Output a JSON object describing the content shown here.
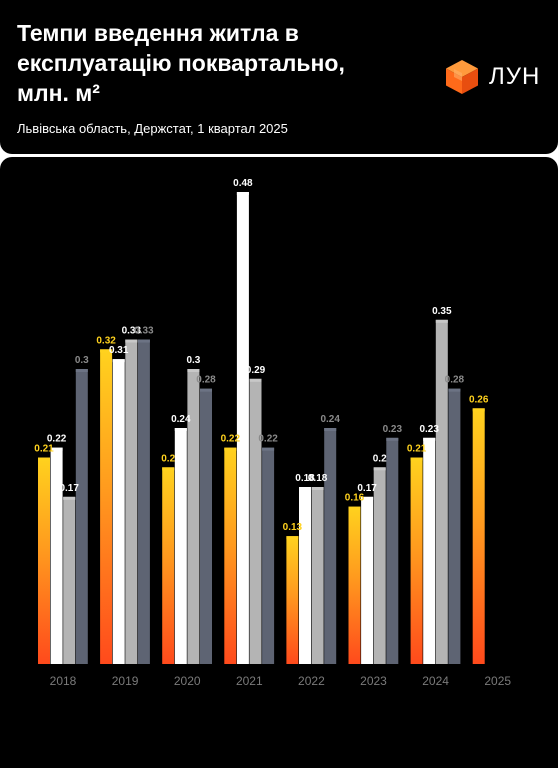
{
  "header": {
    "title": "Темпи введення житла в експлуатацію поквартально, млн. м²",
    "subtitle": "Львівська область, Держстат, 1 квартал 2025",
    "logo_text": "ЛУН"
  },
  "colors": {
    "background": "#000000",
    "q1": "#ffd21e",
    "q1_bottom": "#ff4a1c",
    "q2": "#ffffff",
    "q3": "#b4b4b4",
    "q4": "#5e6473",
    "logo": "#ff6a1a",
    "axis_text": "#7a7a7a"
  },
  "chart_data": {
    "type": "bar",
    "title": "Темпи введення житла в експлуатацію поквартально, млн. м²",
    "xlabel": "",
    "ylabel": "",
    "ylim": [
      0,
      0.48
    ],
    "grid": false,
    "legend": "none",
    "categories": [
      "2018",
      "2019",
      "2020",
      "2021",
      "2022",
      "2023",
      "2024",
      "2025"
    ],
    "series": [
      {
        "values": [
          0.21,
          0.32,
          0.2,
          0.22,
          0.13,
          0.16,
          0.21,
          0.26
        ],
        "labels": [
          "0.21",
          "0.32",
          "0.2",
          "0.22",
          "0.13",
          "0.16",
          "0.21",
          "0.26"
        ]
      },
      {
        "values": [
          0.22,
          0.31,
          0.24,
          0.48,
          0.18,
          0.17,
          0.23,
          null
        ],
        "labels": [
          "0.22",
          "0.31",
          "0.24",
          "0.48",
          "0.18",
          "0.17",
          "0.23",
          ""
        ]
      },
      {
        "values": [
          0.17,
          0.33,
          0.3,
          0.29,
          0.18,
          0.2,
          0.35,
          null
        ],
        "labels": [
          "0.17",
          "0.33",
          "0.3",
          "0.29",
          "0.18",
          "0.2",
          "0.35",
          ""
        ]
      },
      {
        "values": [
          0.3,
          0.33,
          0.28,
          0.22,
          0.24,
          0.23,
          0.28,
          null
        ],
        "labels": [
          "0.3",
          "0.33",
          "0.28",
          "0.22",
          "0.24",
          "0.23",
          "0.28",
          ""
        ]
      }
    ]
  }
}
